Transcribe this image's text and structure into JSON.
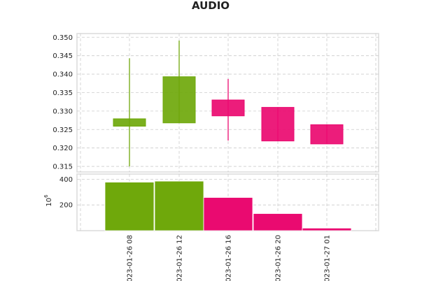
{
  "chart_data": {
    "type": "candlestick",
    "title": "AUDIO",
    "colors": {
      "up": "#6fa80b",
      "down": "#ea0a70"
    },
    "x_tick_labels": [
      "023-01-26 08",
      "023-01-26 12",
      "023-01-26 16",
      "023-01-26 20",
      "023-01-27 01"
    ],
    "price_panel": {
      "ylim": [
        0.3135,
        0.351
      ],
      "yticks": [
        "0.315",
        "0.320",
        "0.325",
        "0.330",
        "0.335",
        "0.340",
        "0.345",
        "0.350"
      ],
      "candles": [
        {
          "x": "023-01-26 08",
          "open": 0.3259,
          "close": 0.3279,
          "high": 0.3443,
          "low": 0.315,
          "direction": "up"
        },
        {
          "x": "023-01-26 12",
          "open": 0.3268,
          "close": 0.3393,
          "high": 0.3491,
          "low": 0.3268,
          "direction": "up"
        },
        {
          "x": "023-01-26 16",
          "open": 0.333,
          "close": 0.3287,
          "high": 0.3387,
          "low": 0.322,
          "direction": "down"
        },
        {
          "x": "023-01-26 20",
          "open": 0.331,
          "close": 0.3219,
          "high": 0.331,
          "low": 0.3219,
          "direction": "down"
        },
        {
          "x": "023-01-27 01",
          "open": 0.3263,
          "close": 0.3211,
          "high": 0.3263,
          "low": 0.3211,
          "direction": "down"
        }
      ]
    },
    "volume_panel": {
      "ylabel": "10^6",
      "ylim": [
        0,
        440
      ],
      "yticks": [
        "200",
        "400"
      ],
      "volumes": [
        377,
        385,
        258,
        133,
        20
      ]
    }
  }
}
